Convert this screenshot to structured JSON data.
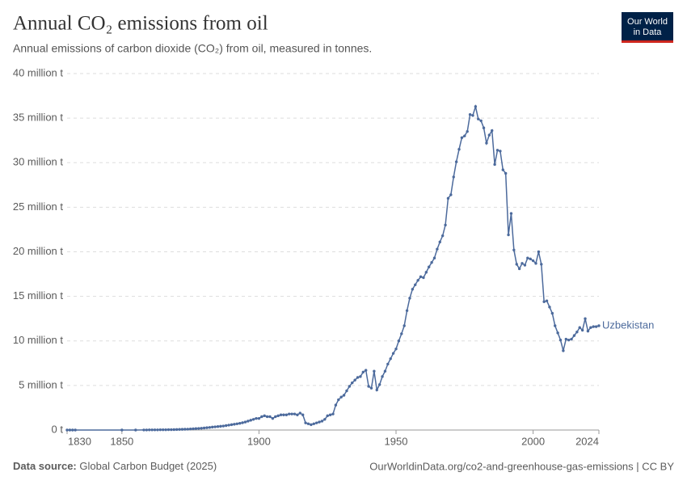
{
  "chart_data": {
    "type": "line",
    "title": "Annual CO₂ emissions from oil",
    "subtitle": "Annual emissions of carbon dioxide (CO₂) from oil, measured in tonnes.",
    "x": [
      1830,
      1831,
      1832,
      1833,
      1850,
      1855,
      1858,
      1859,
      1860,
      1861,
      1862,
      1863,
      1864,
      1865,
      1866,
      1867,
      1868,
      1869,
      1870,
      1871,
      1872,
      1873,
      1874,
      1875,
      1876,
      1877,
      1878,
      1879,
      1880,
      1881,
      1882,
      1883,
      1884,
      1885,
      1886,
      1887,
      1888,
      1889,
      1890,
      1891,
      1892,
      1893,
      1894,
      1895,
      1896,
      1897,
      1898,
      1899,
      1900,
      1901,
      1902,
      1903,
      1904,
      1905,
      1906,
      1907,
      1908,
      1909,
      1910,
      1911,
      1912,
      1913,
      1914,
      1915,
      1916,
      1917,
      1918,
      1919,
      1920,
      1921,
      1922,
      1923,
      1924,
      1925,
      1926,
      1927,
      1928,
      1929,
      1930,
      1931,
      1932,
      1933,
      1934,
      1935,
      1936,
      1937,
      1938,
      1939,
      1940,
      1941,
      1942,
      1943,
      1944,
      1945,
      1946,
      1947,
      1948,
      1949,
      1950,
      1951,
      1952,
      1953,
      1954,
      1955,
      1956,
      1957,
      1958,
      1959,
      1960,
      1961,
      1962,
      1963,
      1964,
      1965,
      1966,
      1967,
      1968,
      1969,
      1970,
      1971,
      1972,
      1973,
      1974,
      1975,
      1976,
      1977,
      1978,
      1979,
      1980,
      1981,
      1982,
      1983,
      1984,
      1985,
      1986,
      1987,
      1988,
      1989,
      1990,
      1991,
      1992,
      1993,
      1994,
      1995,
      1996,
      1997,
      1998,
      1999,
      2000,
      2001,
      2002,
      2003,
      2004,
      2005,
      2006,
      2007,
      2008,
      2009,
      2010,
      2011,
      2012,
      2013,
      2014,
      2015,
      2016,
      2017,
      2018,
      2019,
      2020,
      2021,
      2022,
      2023,
      2024
    ],
    "series": [
      {
        "name": "Uzbekistan",
        "color": "#4c6a9c",
        "values": [
          0,
          0,
          0,
          0,
          0,
          0,
          0.01,
          0.01,
          0.02,
          0.02,
          0.02,
          0.02,
          0.03,
          0.03,
          0.03,
          0.04,
          0.04,
          0.05,
          0.06,
          0.07,
          0.08,
          0.09,
          0.1,
          0.12,
          0.14,
          0.16,
          0.18,
          0.2,
          0.23,
          0.26,
          0.29,
          0.33,
          0.36,
          0.39,
          0.42,
          0.45,
          0.5,
          0.55,
          0.6,
          0.65,
          0.7,
          0.75,
          0.82,
          0.9,
          1.0,
          1.1,
          1.2,
          1.3,
          1.3,
          1.5,
          1.6,
          1.5,
          1.5,
          1.3,
          1.5,
          1.6,
          1.7,
          1.7,
          1.7,
          1.8,
          1.8,
          1.8,
          1.7,
          1.9,
          1.7,
          0.8,
          0.7,
          0.6,
          0.7,
          0.8,
          0.9,
          1.0,
          1.2,
          1.6,
          1.7,
          1.8,
          2.8,
          3.4,
          3.7,
          3.9,
          4.4,
          4.9,
          5.3,
          5.6,
          5.9,
          6.0,
          6.5,
          6.7,
          4.9,
          4.7,
          6.6,
          4.5,
          5.1,
          6.0,
          6.6,
          7.4,
          8.0,
          8.6,
          9.1,
          10.0,
          10.8,
          11.7,
          13.4,
          14.8,
          15.8,
          16.3,
          16.8,
          17.2,
          17.1,
          17.7,
          18.3,
          18.8,
          19.3,
          20.3,
          21.1,
          21.8,
          23.0,
          26.0,
          26.4,
          28.4,
          30.1,
          31.5,
          32.8,
          33.0,
          33.5,
          35.4,
          35.3,
          36.3,
          34.9,
          34.7,
          33.9,
          32.2,
          33.1,
          33.6,
          29.8,
          31.4,
          31.3,
          29.2,
          28.8,
          21.9,
          24.3,
          20.2,
          18.6,
          18.1,
          18.7,
          18.5,
          19.3,
          19.2,
          19.0,
          18.7,
          20.0,
          18.6,
          14.4,
          14.5,
          13.8,
          13.1,
          11.7,
          10.9,
          10.1,
          8.9,
          10.2,
          10.1,
          10.2,
          10.6,
          11.0,
          11.5,
          11.2,
          12.5,
          11.1,
          11.5,
          11.6,
          11.6,
          11.7
        ]
      }
    ],
    "xlim": [
      1830,
      2024
    ],
    "xticks": [
      1830,
      1850,
      1900,
      1950,
      2000,
      2024
    ],
    "ylim": [
      0,
      40
    ],
    "yticks": [
      {
        "value": 0,
        "label": "0 t"
      },
      {
        "value": 5,
        "label": "5 million t"
      },
      {
        "value": 10,
        "label": "10 million t"
      },
      {
        "value": 15,
        "label": "15 million t"
      },
      {
        "value": 20,
        "label": "20 million t"
      },
      {
        "value": 25,
        "label": "25 million t"
      },
      {
        "value": 30,
        "label": "30 million t"
      },
      {
        "value": 35,
        "label": "35 million t"
      },
      {
        "value": 40,
        "label": "40 million t"
      }
    ],
    "grid": true,
    "source_label": "Data source:",
    "source": "Global Carbon Budget (2025)",
    "url": "OurWorldinData.org/co2-and-greenhouse-gas-emissions | CC BY",
    "logo": [
      "Our World",
      "in Data"
    ]
  }
}
